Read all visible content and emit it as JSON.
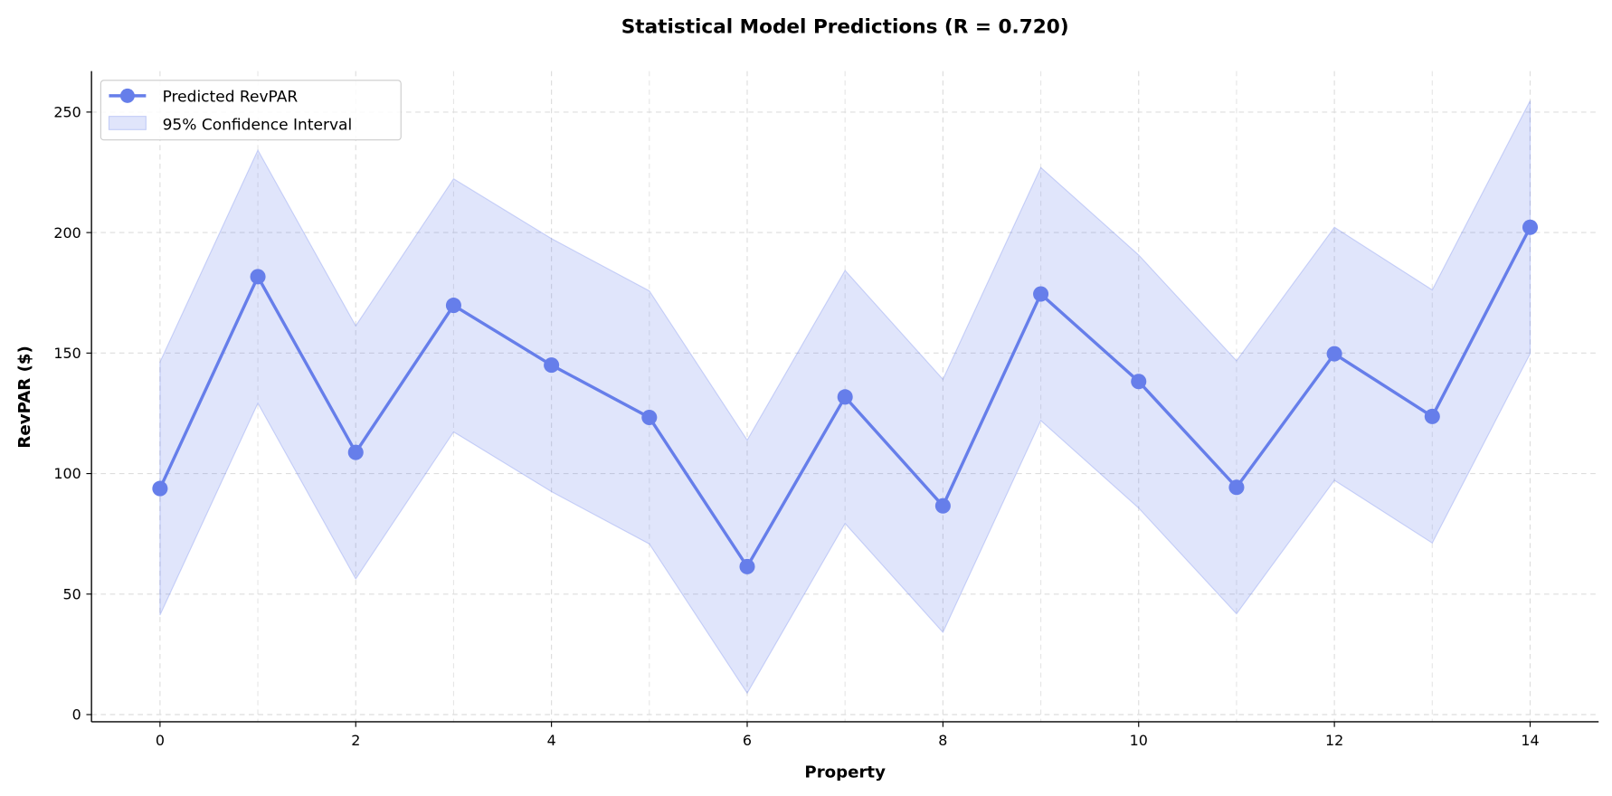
{
  "chart_data": {
    "type": "line",
    "title": "Statistical Model Predictions (R = 0.720)",
    "xlabel": "Property",
    "ylabel": "RevPAR ($)",
    "xlim": [
      -0.7,
      14.7
    ],
    "ylim": [
      -3,
      267
    ],
    "xticks": [
      0,
      2,
      4,
      6,
      8,
      10,
      12,
      14
    ],
    "yticks": [
      0,
      50,
      100,
      150,
      200,
      250
    ],
    "grid": true,
    "legend_position": "top-left",
    "x": [
      0,
      1,
      2,
      3,
      4,
      5,
      6,
      7,
      8,
      9,
      10,
      11,
      12,
      13,
      14
    ],
    "series": [
      {
        "name": "Predicted RevPAR",
        "color": "#667eea",
        "values": [
          93.8,
          181.7,
          108.8,
          169.8,
          145.0,
          123.3,
          61.4,
          131.8,
          86.6,
          174.5,
          138.2,
          94.3,
          149.7,
          123.7,
          202.2
        ]
      }
    ],
    "band": {
      "name": "95% Confidence Interval",
      "color": "#667eea",
      "lower": [
        41.3,
        129.2,
        56.3,
        117.3,
        92.5,
        70.8,
        8.9,
        79.3,
        34.1,
        122.0,
        85.7,
        41.8,
        97.2,
        71.2,
        149.7
      ],
      "upper": [
        146.3,
        234.2,
        161.3,
        222.3,
        197.5,
        175.8,
        113.9,
        184.3,
        139.1,
        227.0,
        190.7,
        146.8,
        202.2,
        176.2,
        254.7
      ]
    }
  }
}
